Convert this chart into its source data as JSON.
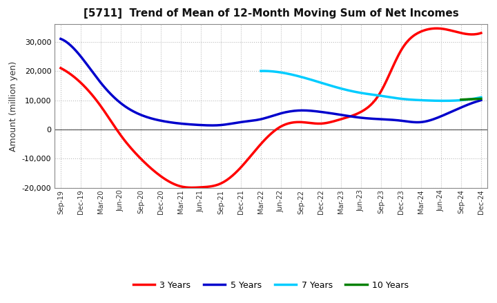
{
  "title": "[5711]  Trend of Mean of 12-Month Moving Sum of Net Incomes",
  "ylabel": "Amount (million yen)",
  "ylim": [
    -20000,
    36000
  ],
  "yticks": [
    -20000,
    -10000,
    0,
    10000,
    20000,
    30000
  ],
  "background_color": "#ffffff",
  "grid_color": "#bbbbbb",
  "quarters": [
    "Sep-19",
    "Dec-19",
    "Mar-20",
    "Jun-20",
    "Sep-20",
    "Dec-20",
    "Mar-21",
    "Jun-21",
    "Sep-21",
    "Dec-21",
    "Mar-22",
    "Jun-22",
    "Sep-22",
    "Dec-22",
    "Mar-23",
    "Jun-23",
    "Sep-23",
    "Dec-23",
    "Mar-24",
    "Jun-24",
    "Sep-24",
    "Dec-24"
  ],
  "series": {
    "3 Years": {
      "color": "#ff0000",
      "linewidth": 2.5,
      "data": [
        [
          "Sep-19",
          21000
        ],
        [
          "Dec-19",
          16000
        ],
        [
          "Mar-20",
          8000
        ],
        [
          "Jun-20",
          -2000
        ],
        [
          "Sep-20",
          -10000
        ],
        [
          "Dec-20",
          -16000
        ],
        [
          "Mar-21",
          -19500
        ],
        [
          "Jun-21",
          -19800
        ],
        [
          "Sep-21",
          -18500
        ],
        [
          "Dec-21",
          -13000
        ],
        [
          "Mar-22",
          -5000
        ],
        [
          "Jun-22",
          1000
        ],
        [
          "Sep-22",
          2500
        ],
        [
          "Dec-22",
          2000
        ],
        [
          "Mar-23",
          3500
        ],
        [
          "Jun-23",
          6000
        ],
        [
          "Sep-23",
          13000
        ],
        [
          "Dec-23",
          27000
        ],
        [
          "Mar-24",
          33500
        ],
        [
          "Jun-24",
          34500
        ],
        [
          "Sep-24",
          33000
        ],
        [
          "Dec-24",
          33000
        ]
      ]
    },
    "5 Years": {
      "color": "#0000cc",
      "linewidth": 2.5,
      "data": [
        [
          "Sep-19",
          31000
        ],
        [
          "Dec-19",
          25000
        ],
        [
          "Mar-20",
          16000
        ],
        [
          "Jun-20",
          9000
        ],
        [
          "Sep-20",
          5000
        ],
        [
          "Dec-20",
          3000
        ],
        [
          "Mar-21",
          2000
        ],
        [
          "Jun-21",
          1500
        ],
        [
          "Sep-21",
          1500
        ],
        [
          "Dec-21",
          2500
        ],
        [
          "Mar-22",
          3500
        ],
        [
          "Jun-22",
          5500
        ],
        [
          "Sep-22",
          6500
        ],
        [
          "Dec-22",
          6000
        ],
        [
          "Mar-23",
          5000
        ],
        [
          "Jun-23",
          4000
        ],
        [
          "Sep-23",
          3500
        ],
        [
          "Dec-23",
          3000
        ],
        [
          "Mar-24",
          2500
        ],
        [
          "Jun-24",
          4500
        ],
        [
          "Sep-24",
          7500
        ],
        [
          "Dec-24",
          10000
        ]
      ]
    },
    "7 Years": {
      "color": "#00ccff",
      "linewidth": 2.5,
      "data": [
        [
          "Mar-22",
          20000
        ],
        [
          "Jun-22",
          19500
        ],
        [
          "Sep-22",
          18000
        ],
        [
          "Dec-22",
          16000
        ],
        [
          "Mar-23",
          14000
        ],
        [
          "Jun-23",
          12500
        ],
        [
          "Sep-23",
          11500
        ],
        [
          "Dec-23",
          10500
        ],
        [
          "Mar-24",
          10000
        ],
        [
          "Jun-24",
          9800
        ],
        [
          "Sep-24",
          10000
        ],
        [
          "Dec-24",
          11000
        ]
      ]
    },
    "10 Years": {
      "color": "#008000",
      "linewidth": 2.5,
      "data": [
        [
          "Sep-24",
          10200
        ],
        [
          "Dec-24",
          10500
        ]
      ]
    }
  },
  "legend": {
    "labels": [
      "3 Years",
      "5 Years",
      "7 Years",
      "10 Years"
    ],
    "colors": [
      "#ff0000",
      "#0000cc",
      "#00ccff",
      "#008000"
    ]
  }
}
